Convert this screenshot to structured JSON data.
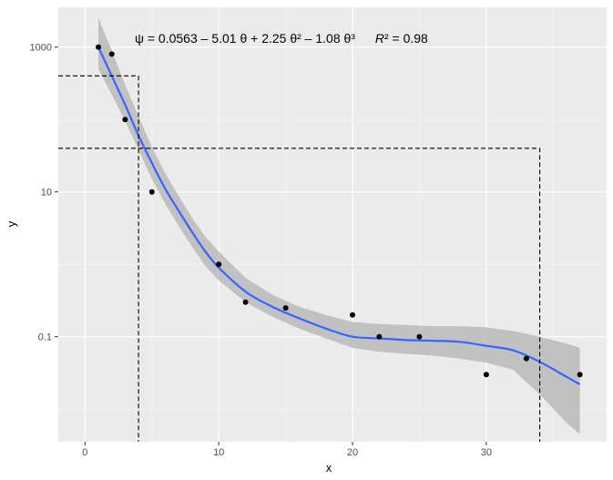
{
  "chart_data": {
    "type": "scatter",
    "title": "",
    "xlabel": "x",
    "ylabel": "y",
    "xlim": [
      -2,
      39
    ],
    "ylim_log10": [
      -2.45,
      3.55
    ],
    "y_scale": "log10",
    "grid": true,
    "x_ticks": [
      0,
      10,
      20,
      30
    ],
    "x_tick_labels": [
      "0",
      "10",
      "20",
      "30"
    ],
    "y_ticks": [
      0.1,
      10,
      1000
    ],
    "y_tick_labels": [
      "0.1",
      "10",
      "1000"
    ],
    "points": {
      "x": [
        1,
        2,
        3,
        5,
        10,
        12,
        15,
        20,
        22,
        25,
        30,
        33,
        37
      ],
      "y": [
        1000,
        800,
        100,
        10,
        1,
        0.3,
        0.25,
        0.2,
        0.1,
        0.1,
        0.03,
        0.05,
        0.03
      ]
    },
    "fit": {
      "color": "#3366ff",
      "band_color": "#bdbdbd",
      "x": [
        1,
        2,
        3,
        4,
        5,
        6,
        7,
        8,
        9,
        10,
        12,
        14,
        16,
        18,
        20,
        22,
        24,
        26,
        28,
        30,
        32,
        34,
        36,
        37
      ],
      "y": [
        1000,
        400,
        160,
        60,
        25,
        11,
        5.5,
        2.8,
        1.5,
        0.9,
        0.42,
        0.26,
        0.18,
        0.13,
        0.1,
        0.095,
        0.09,
        0.088,
        0.085,
        0.075,
        0.065,
        0.045,
        0.028,
        0.022
      ],
      "lower": [
        500,
        220,
        95,
        38,
        15,
        6.8,
        3.4,
        1.75,
        0.95,
        0.6,
        0.3,
        0.19,
        0.13,
        0.095,
        0.07,
        0.062,
        0.058,
        0.055,
        0.05,
        0.044,
        0.035,
        0.016,
        0.0065,
        0.0045
      ],
      "upper": [
        2500,
        900,
        300,
        110,
        42,
        18,
        8.8,
        4.4,
        2.4,
        1.5,
        0.65,
        0.38,
        0.26,
        0.2,
        0.16,
        0.15,
        0.145,
        0.14,
        0.14,
        0.135,
        0.12,
        0.1,
        0.08,
        0.07
      ]
    },
    "dashed_lines": [
      {
        "x": 4,
        "y": 400
      },
      {
        "x": 34,
        "y": 40
      }
    ],
    "annotation": {
      "equation": "ψ = 0.0563 – 5.01 θ + 2.25 θ² – 1.08 θ³",
      "r2_label": "R",
      "r2_value": "² = 0.98"
    }
  }
}
